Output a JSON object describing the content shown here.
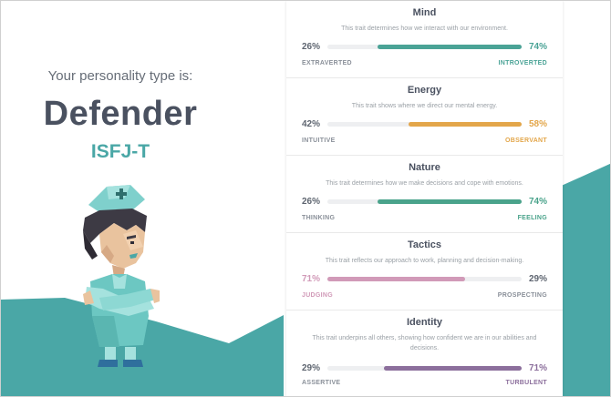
{
  "colors": {
    "teal": "#4aa7a6",
    "mind": "#4aa396",
    "energy": "#e3a64a",
    "nature": "#4aa38b",
    "tactics": "#d19ab8",
    "identity": "#8c6f9c"
  },
  "profile": {
    "subtitle": "Your personality type is:",
    "type_name": "Defender",
    "type_code": "ISFJ-T",
    "avatar": "nurse-character-illustration"
  },
  "traits": [
    {
      "title": "Mind",
      "description": "This trait determines how we interact with our environment.",
      "left_pct": "26%",
      "right_pct": "74%",
      "left_label": "EXTRAVERTED",
      "right_label": "INTROVERTED",
      "dominant": "right",
      "fill_fraction": 0.74
    },
    {
      "title": "Energy",
      "description": "This trait shows where we direct our mental energy.",
      "left_pct": "42%",
      "right_pct": "58%",
      "left_label": "INTUITIVE",
      "right_label": "OBSERVANT",
      "dominant": "right",
      "fill_fraction": 0.58
    },
    {
      "title": "Nature",
      "description": "This trait determines how we make decisions and cope with emotions.",
      "left_pct": "26%",
      "right_pct": "74%",
      "left_label": "THINKING",
      "right_label": "FEELING",
      "dominant": "right",
      "fill_fraction": 0.74
    },
    {
      "title": "Tactics",
      "description": "This trait reflects our approach to work, planning and decision-making.",
      "left_pct": "71%",
      "right_pct": "29%",
      "left_label": "JUDGING",
      "right_label": "PROSPECTING",
      "dominant": "left",
      "fill_fraction": 0.71
    },
    {
      "title": "Identity",
      "description": "This trait underpins all others, showing how confident we are in our abilities and decisions.",
      "left_pct": "29%",
      "right_pct": "71%",
      "left_label": "ASSERTIVE",
      "right_label": "TURBULENT",
      "dominant": "right",
      "fill_fraction": 0.71
    }
  ]
}
